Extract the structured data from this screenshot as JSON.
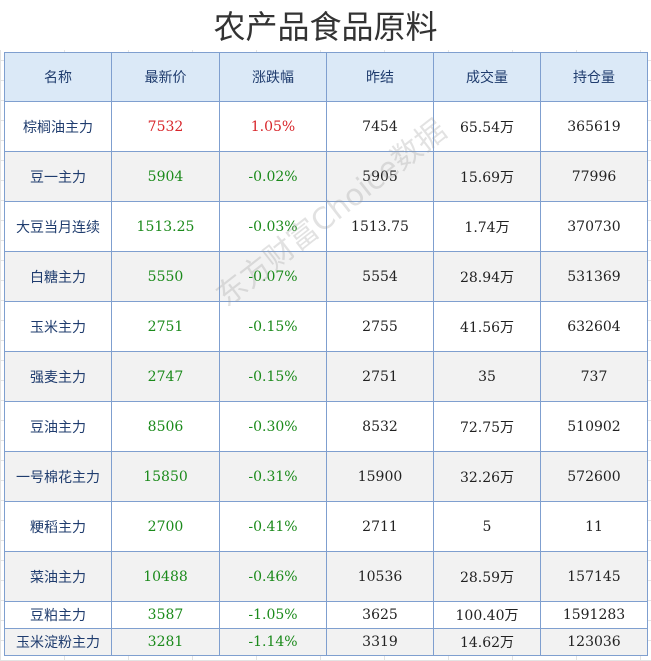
{
  "title": "农产品食品原料",
  "watermark": "东方财富Choice数据",
  "columns": [
    "名称",
    "最新价",
    "涨跌幅",
    "昨结",
    "成交量",
    "持仓量"
  ],
  "colors": {
    "up": "#d8262b",
    "down": "#1b8a1b",
    "header_bg": "#dbe9f7",
    "border": "#7f9fcf"
  },
  "rows": [
    {
      "name": "棕榈油主力",
      "price": "7532",
      "change": "1.05%",
      "dir": "up",
      "prev": "7454",
      "volume": "65.54万",
      "oi": "365619"
    },
    {
      "name": "豆一主力",
      "price": "5904",
      "change": "-0.02%",
      "dir": "down",
      "prev": "5905",
      "volume": "15.69万",
      "oi": "77996"
    },
    {
      "name": "大豆当月连续",
      "price": "1513.25",
      "change": "-0.03%",
      "dir": "down",
      "prev": "1513.75",
      "volume": "1.74万",
      "oi": "370730"
    },
    {
      "name": "白糖主力",
      "price": "5550",
      "change": "-0.07%",
      "dir": "down",
      "prev": "5554",
      "volume": "28.94万",
      "oi": "531369"
    },
    {
      "name": "玉米主力",
      "price": "2751",
      "change": "-0.15%",
      "dir": "down",
      "prev": "2755",
      "volume": "41.56万",
      "oi": "632604"
    },
    {
      "name": "强麦主力",
      "price": "2747",
      "change": "-0.15%",
      "dir": "down",
      "prev": "2751",
      "volume": "35",
      "oi": "737"
    },
    {
      "name": "豆油主力",
      "price": "8506",
      "change": "-0.30%",
      "dir": "down",
      "prev": "8532",
      "volume": "72.75万",
      "oi": "510902"
    },
    {
      "name": "一号棉花主力",
      "price": "15850",
      "change": "-0.31%",
      "dir": "down",
      "prev": "15900",
      "volume": "32.26万",
      "oi": "572600"
    },
    {
      "name": "粳稻主力",
      "price": "2700",
      "change": "-0.41%",
      "dir": "down",
      "prev": "2711",
      "volume": "5",
      "oi": "11"
    },
    {
      "name": "菜油主力",
      "price": "10488",
      "change": "-0.46%",
      "dir": "down",
      "prev": "10536",
      "volume": "28.59万",
      "oi": "157145"
    },
    {
      "name": "豆粕主力",
      "price": "3587",
      "change": "-1.05%",
      "dir": "down",
      "prev": "3625",
      "volume": "100.40万",
      "oi": "1591283"
    },
    {
      "name": "玉米淀粉主力",
      "price": "3281",
      "change": "-1.14%",
      "dir": "down",
      "prev": "3319",
      "volume": "14.62万",
      "oi": "123036"
    }
  ]
}
